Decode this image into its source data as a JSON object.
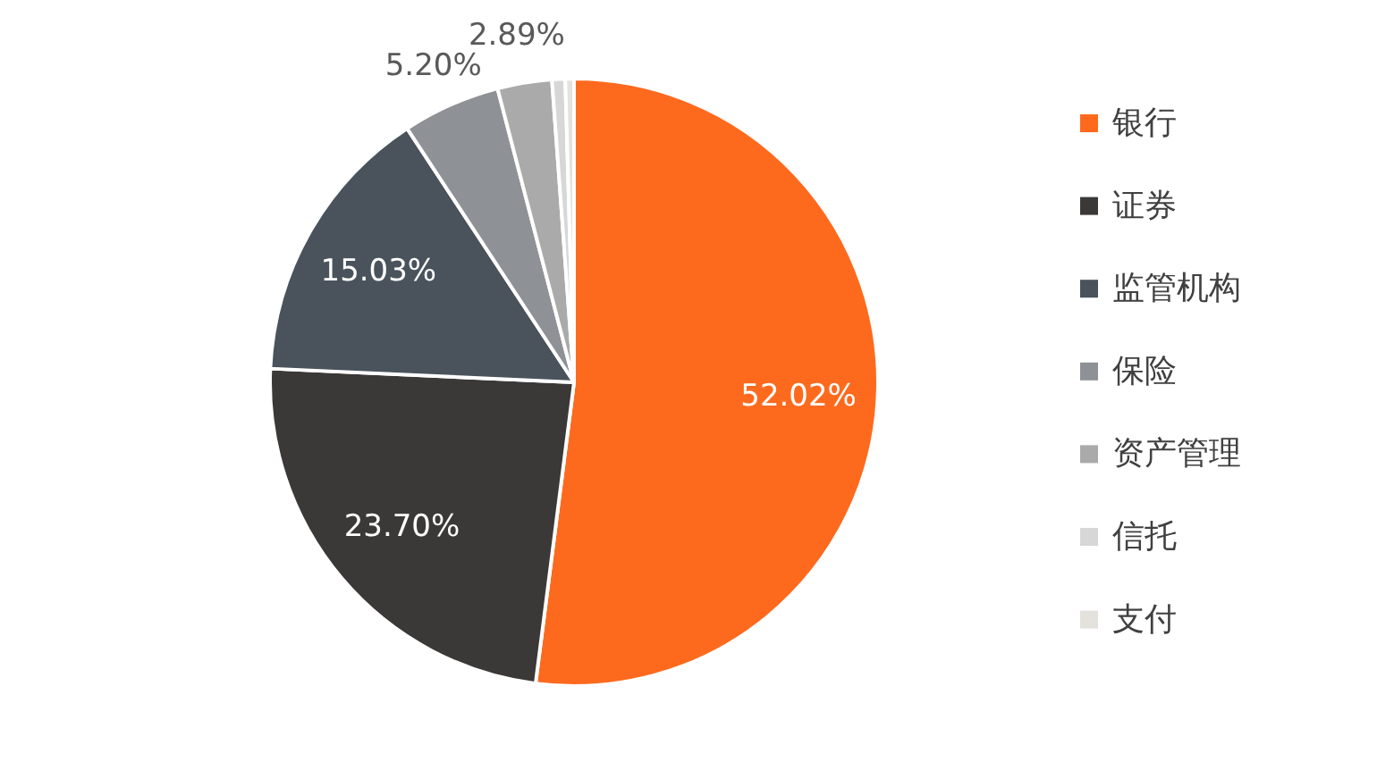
{
  "chart_data": {
    "type": "pie",
    "categories": [
      "银行",
      "证券",
      "监管机构",
      "保险",
      "资产管理",
      "信托",
      "支付"
    ],
    "values": [
      52.02,
      23.7,
      15.03,
      5.2,
      2.89,
      0.7,
      0.46
    ],
    "colors": [
      "#fd6a1e",
      "#3b3838",
      "#4a535b",
      "#8e9195",
      "#aaaaaa",
      "#d6d7d6",
      "#e4e2dc"
    ],
    "value_labels": [
      "52.02%",
      "23.70%",
      "15.03%",
      "5.20%",
      "2.89%",
      null,
      null
    ],
    "legend": "right"
  }
}
